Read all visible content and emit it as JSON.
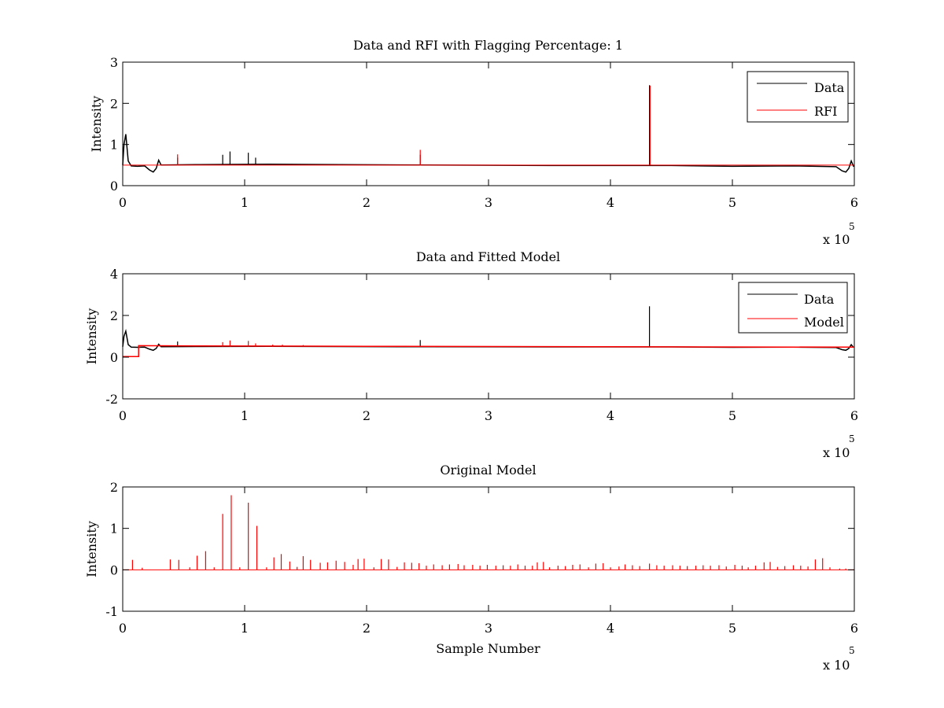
{
  "figure": {
    "background": "#ffffff"
  },
  "chart_data": [
    {
      "type": "line",
      "title": "Data and RFI with Flagging Percentage: 1",
      "xlabel": "",
      "ylabel": "Intensity",
      "xlim": [
        0,
        600000
      ],
      "ylim": [
        0,
        3
      ],
      "xticks": [
        0,
        1,
        2,
        3,
        4,
        5,
        6
      ],
      "yticks": [
        0,
        1,
        2,
        3
      ],
      "x_exponent_label": "x 10",
      "x_exponent_power": "5",
      "legend": {
        "placement": "top-right",
        "entries": [
          "Data",
          "RFI"
        ]
      },
      "series": [
        {
          "name": "Data",
          "color": "#000000",
          "baseline": 0.5,
          "points": [
            [
              0,
              0.5
            ],
            [
              1000,
              1.0
            ],
            [
              2500,
              1.25
            ],
            [
              4500,
              0.6
            ],
            [
              7000,
              0.48
            ],
            [
              12000,
              0.47
            ],
            [
              18000,
              0.48
            ],
            [
              22000,
              0.38
            ],
            [
              25000,
              0.33
            ],
            [
              27500,
              0.42
            ],
            [
              29500,
              0.62
            ],
            [
              31500,
              0.5
            ],
            [
              60000,
              0.51
            ],
            [
              120000,
              0.52
            ],
            [
              250000,
              0.5
            ],
            [
              350000,
              0.49
            ],
            [
              450000,
              0.49
            ],
            [
              500000,
              0.47
            ],
            [
              550000,
              0.48
            ],
            [
              585000,
              0.46
            ],
            [
              590000,
              0.36
            ],
            [
              593000,
              0.33
            ],
            [
              595500,
              0.42
            ],
            [
              597500,
              0.6
            ],
            [
              599500,
              0.46
            ]
          ],
          "spikes": [
            [
              45000,
              0.68
            ],
            [
              82000,
              0.75
            ],
            [
              88000,
              0.83
            ],
            [
              103000,
              0.8
            ],
            [
              109000,
              0.68
            ],
            [
              244000,
              0.75
            ],
            [
              432000,
              2.44
            ]
          ]
        },
        {
          "name": "RFI",
          "color": "#ff0000",
          "baseline": 0.5,
          "spikes": [
            [
              45000,
              0.76
            ],
            [
              244000,
              0.87
            ],
            [
              432500,
              2.43
            ]
          ]
        }
      ]
    },
    {
      "type": "line",
      "title": "Data and Fitted Model",
      "xlabel": "",
      "ylabel": "Intensity",
      "xlim": [
        0,
        600000
      ],
      "ylim": [
        -2,
        4
      ],
      "xticks": [
        0,
        1,
        2,
        3,
        4,
        5,
        6
      ],
      "yticks": [
        -2,
        0,
        2,
        4
      ],
      "x_exponent_label": "x 10",
      "x_exponent_power": "5",
      "legend": {
        "placement": "top-right",
        "entries": [
          "Data",
          "Model"
        ]
      },
      "series": [
        {
          "name": "Data",
          "color": "#000000",
          "baseline": 0.5,
          "points": [
            [
              0,
              0.5
            ],
            [
              1000,
              1.0
            ],
            [
              2500,
              1.25
            ],
            [
              4500,
              0.6
            ],
            [
              7000,
              0.48
            ],
            [
              12000,
              0.47
            ],
            [
              18000,
              0.48
            ],
            [
              22000,
              0.38
            ],
            [
              25000,
              0.33
            ],
            [
              27500,
              0.42
            ],
            [
              29500,
              0.62
            ],
            [
              31500,
              0.5
            ],
            [
              60000,
              0.51
            ],
            [
              120000,
              0.52
            ],
            [
              250000,
              0.5
            ],
            [
              350000,
              0.49
            ],
            [
              450000,
              0.49
            ],
            [
              500000,
              0.47
            ],
            [
              550000,
              0.48
            ],
            [
              585000,
              0.46
            ],
            [
              590000,
              0.36
            ],
            [
              593000,
              0.33
            ],
            [
              595500,
              0.42
            ],
            [
              597500,
              0.6
            ],
            [
              599500,
              0.46
            ]
          ],
          "spikes": [
            [
              45000,
              0.75
            ],
            [
              244000,
              0.82
            ],
            [
              432000,
              2.44
            ]
          ]
        },
        {
          "name": "Model",
          "color": "#ff0000",
          "baseline": 0.5,
          "points": [
            [
              0,
              0.03
            ],
            [
              13000,
              0.03
            ],
            [
              13000,
              0.55
            ],
            [
              60000,
              0.54
            ],
            [
              200000,
              0.52
            ],
            [
              400000,
              0.5
            ],
            [
              600000,
              0.48
            ]
          ],
          "spikes": [
            [
              82000,
              0.72
            ],
            [
              88000,
              0.8
            ],
            [
              103000,
              0.78
            ],
            [
              109000,
              0.66
            ],
            [
              123000,
              0.6
            ],
            [
              131000,
              0.6
            ],
            [
              148000,
              0.58
            ]
          ]
        }
      ]
    },
    {
      "type": "line",
      "title": "Original Model",
      "xlabel": "Sample Number",
      "ylabel": "Intensity",
      "xlim": [
        0,
        600000
      ],
      "ylim": [
        -1,
        2
      ],
      "xticks": [
        0,
        1,
        2,
        3,
        4,
        5,
        6
      ],
      "yticks": [
        -1,
        0,
        1,
        2
      ],
      "x_exponent_label": "x 10",
      "x_exponent_power": "5",
      "series": [
        {
          "name": "",
          "color": "#ff0000",
          "baseline": 0,
          "spikes": [
            [
              8000,
              0.24
            ],
            [
              16000,
              0.05
            ],
            [
              39000,
              0.25
            ],
            [
              46000,
              0.24
            ],
            [
              55000,
              0.06
            ],
            [
              61000,
              0.34
            ],
            [
              68000,
              0.45
            ],
            [
              75000,
              0.06
            ],
            [
              82000,
              1.35
            ],
            [
              89000,
              1.8
            ],
            [
              96000,
              0.06
            ],
            [
              103000,
              1.62
            ],
            [
              110000,
              1.06
            ],
            [
              118000,
              0.06
            ],
            [
              124000,
              0.3
            ],
            [
              130000,
              0.38
            ],
            [
              137000,
              0.2
            ],
            [
              143000,
              0.07
            ],
            [
              148000,
              0.33
            ],
            [
              154000,
              0.24
            ],
            [
              162000,
              0.17
            ],
            [
              168000,
              0.18
            ],
            [
              175000,
              0.22
            ],
            [
              182000,
              0.19
            ],
            [
              189000,
              0.12
            ],
            [
              193000,
              0.26
            ],
            [
              198000,
              0.27
            ],
            [
              206000,
              0.06
            ],
            [
              212000,
              0.26
            ],
            [
              218000,
              0.25
            ],
            [
              225000,
              0.07
            ],
            [
              231000,
              0.18
            ],
            [
              237000,
              0.17
            ],
            [
              243000,
              0.16
            ],
            [
              249000,
              0.1
            ],
            [
              255000,
              0.13
            ],
            [
              262000,
              0.11
            ],
            [
              268000,
              0.13
            ],
            [
              275000,
              0.14
            ],
            [
              280000,
              0.11
            ],
            [
              287000,
              0.12
            ],
            [
              293000,
              0.1
            ],
            [
              299000,
              0.12
            ],
            [
              306000,
              0.1
            ],
            [
              312000,
              0.11
            ],
            [
              318000,
              0.1
            ],
            [
              324000,
              0.13
            ],
            [
              330000,
              0.1
            ],
            [
              336000,
              0.1
            ],
            [
              340000,
              0.18
            ],
            [
              345000,
              0.19
            ],
            [
              350000,
              0.06
            ],
            [
              357000,
              0.1
            ],
            [
              363000,
              0.09
            ],
            [
              369000,
              0.12
            ],
            [
              375000,
              0.13
            ],
            [
              382000,
              0.06
            ],
            [
              388000,
              0.15
            ],
            [
              394000,
              0.16
            ],
            [
              400000,
              0.06
            ],
            [
              407000,
              0.08
            ],
            [
              412000,
              0.13
            ],
            [
              418000,
              0.11
            ],
            [
              424000,
              0.09
            ],
            [
              432000,
              0.15
            ],
            [
              438000,
              0.11
            ],
            [
              444000,
              0.1
            ],
            [
              451000,
              0.11
            ],
            [
              457000,
              0.1
            ],
            [
              463000,
              0.09
            ],
            [
              470000,
              0.1
            ],
            [
              476000,
              0.11
            ],
            [
              482000,
              0.1
            ],
            [
              489000,
              0.11
            ],
            [
              495000,
              0.08
            ],
            [
              502000,
              0.12
            ],
            [
              508000,
              0.1
            ],
            [
              513000,
              0.06
            ],
            [
              519000,
              0.1
            ],
            [
              526000,
              0.18
            ],
            [
              531000,
              0.19
            ],
            [
              537000,
              0.07
            ],
            [
              543000,
              0.09
            ],
            [
              550000,
              0.11
            ],
            [
              556000,
              0.1
            ],
            [
              562000,
              0.08
            ],
            [
              568000,
              0.25
            ],
            [
              574000,
              0.28
            ],
            [
              580000,
              0.06
            ],
            [
              588000,
              0.03
            ],
            [
              593000,
              0.03
            ]
          ]
        }
      ]
    }
  ]
}
